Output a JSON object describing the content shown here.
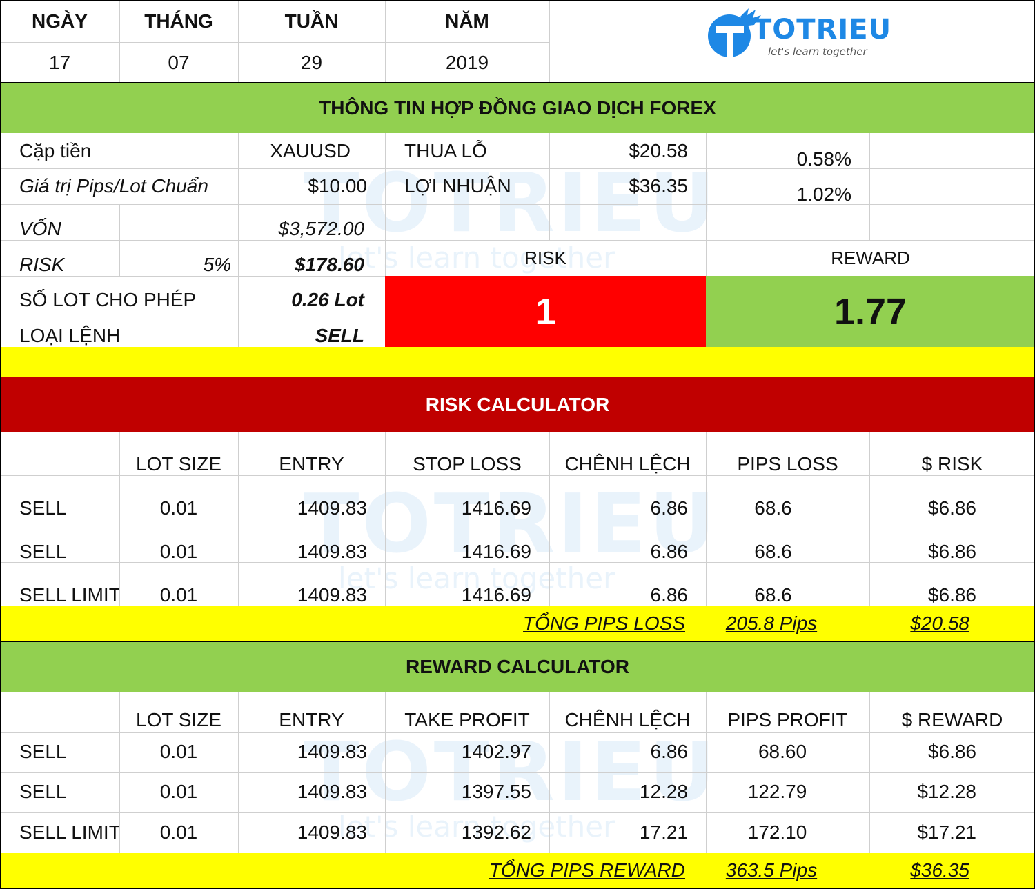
{
  "date_header": {
    "columns": [
      {
        "label": "NGÀY",
        "value": "17"
      },
      {
        "label": "THÁNG",
        "value": "07"
      },
      {
        "label": "TUẦN",
        "value": "29"
      },
      {
        "label": "NĂM",
        "value": "2019"
      }
    ]
  },
  "logo": {
    "name": "TOTRIEU",
    "tagline": "let's learn together",
    "color": "#1e88e5"
  },
  "contract": {
    "title": "THÔNG TIN HỢP ĐỒNG GIAO DỊCH FOREX",
    "pair_label": "Cặp tiền",
    "pair_value": "XAUUSD",
    "pip_label": "Giá trị Pips/Lot Chuẩn",
    "pip_value": "$10.00",
    "capital_label": "VỐN",
    "capital_value": "$3,572.00",
    "risk_label": "RISK",
    "risk_percent": "5%",
    "risk_value": "$178.60",
    "lot_label": "SỐ LOT CHO PHÉP",
    "lot_value": "0.26 Lot",
    "order_label": "LOẠI LỆNH",
    "order_value": "SELL",
    "loss_label": "THUA LỖ",
    "loss_value": "$20.58",
    "loss_percent": "0.58%",
    "profit_label": "LỢI NHUẬN",
    "profit_value": "$36.35",
    "profit_percent": "1.02%",
    "rr_risk_label": "RISK",
    "rr_reward_label": "REWARD",
    "rr_risk_value": "1",
    "rr_reward_value": "1.77"
  },
  "risk_calc": {
    "title": "RISK CALCULATOR",
    "headers": [
      "",
      "LOT SIZE",
      "ENTRY",
      "STOP LOSS",
      "CHÊNH LỆCH",
      "PIPS LOSS",
      "$ RISK"
    ],
    "rows": [
      [
        "SELL",
        "0.01",
        "1409.83",
        "1416.69",
        "6.86",
        "68.6",
        "$6.86"
      ],
      [
        "SELL",
        "0.01",
        "1409.83",
        "1416.69",
        "6.86",
        "68.6",
        "$6.86"
      ],
      [
        "SELL LIMIT",
        "0.01",
        "1409.83",
        "1416.69",
        "6.86",
        "68.6",
        "$6.86"
      ]
    ],
    "total_label": "TỔNG PIPS LOSS",
    "total_pips": "205.8 Pips",
    "total_value": "$20.58"
  },
  "reward_calc": {
    "title": "REWARD CALCULATOR",
    "headers": [
      "",
      "LOT SIZE",
      "ENTRY",
      "TAKE PROFIT",
      "CHÊNH LỆCH",
      "PIPS PROFIT",
      "$ REWARD"
    ],
    "rows": [
      [
        "SELL",
        "0.01",
        "1409.83",
        "1402.97",
        "6.86",
        "68.60",
        "$6.86"
      ],
      [
        "SELL",
        "0.01",
        "1409.83",
        "1397.55",
        "12.28",
        "122.79",
        "$12.28"
      ],
      [
        "SELL LIMIT",
        "0.01",
        "1409.83",
        "1392.62",
        "17.21",
        "172.10",
        "$17.21"
      ]
    ],
    "total_label": "TỔNG PIPS REWARD",
    "total_pips": "363.5 Pips",
    "total_value": "$36.35"
  },
  "colors": {
    "green": "#92d050",
    "yellow": "#ffff00",
    "red_banner": "#c00000",
    "red_box": "#ff0000"
  }
}
